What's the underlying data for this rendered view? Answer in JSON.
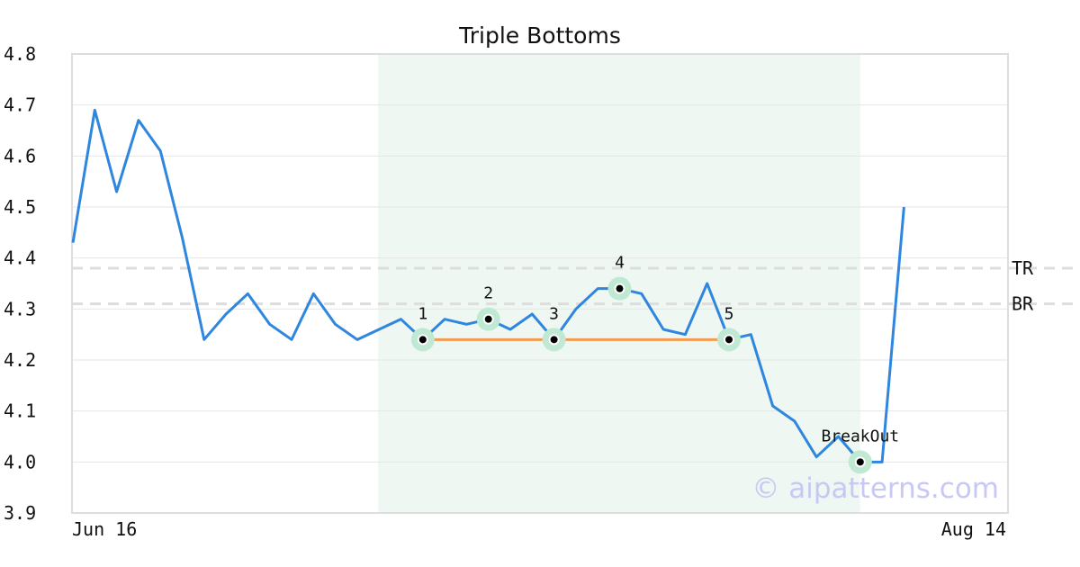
{
  "chart_data": {
    "type": "line",
    "title": "Triple Bottoms",
    "watermark": "© aipatterns.com",
    "x_start_label": "Jun 16",
    "x_end_label": "Aug 14",
    "ylim": [
      3.9,
      4.8
    ],
    "y_ticks": [
      "3.9",
      "4.0",
      "4.1",
      "4.2",
      "4.3",
      "4.4",
      "4.5",
      "4.6",
      "4.7",
      "4.8"
    ],
    "grid": true,
    "series": [
      {
        "values": [
          4.43,
          4.69,
          4.53,
          4.67,
          4.61,
          4.44,
          4.24,
          4.29,
          4.33,
          4.27,
          4.24,
          4.33,
          4.27,
          4.24,
          4.26,
          4.28,
          4.24,
          4.28,
          4.27,
          4.28,
          4.26,
          4.29,
          4.24,
          4.3,
          4.34,
          4.34,
          4.33,
          4.26,
          4.25,
          4.35,
          4.24,
          4.25,
          4.11,
          4.08,
          4.01,
          4.05,
          4.0,
          4.0,
          4.5
        ]
      }
    ],
    "shaded_range": {
      "from_index": 14,
      "to_index": 36
    },
    "support_line": {
      "from_index": 16,
      "to_index": 30,
      "value": 4.24
    },
    "reference_lines": [
      {
        "label": "TR",
        "value": 4.38
      },
      {
        "label": "BR",
        "value": 4.31
      }
    ],
    "markers": [
      {
        "label": "1",
        "index": 16,
        "value": 4.24
      },
      {
        "label": "2",
        "index": 19,
        "value": 4.28
      },
      {
        "label": "3",
        "index": 22,
        "value": 4.24
      },
      {
        "label": "4",
        "index": 25,
        "value": 4.34
      },
      {
        "label": "5",
        "index": 30,
        "value": 4.24
      },
      {
        "label": "BreakOut",
        "index": 36,
        "value": 4.0
      }
    ],
    "colors": {
      "line": "#2e86de",
      "support": "#f39c50",
      "shade": "#eef7f2",
      "marker_halo": "#bfe9d2",
      "reference": "#dddddd",
      "grid": "#e6e6e6",
      "frame": "#dddddd",
      "watermark": "#c8c8f5"
    }
  }
}
